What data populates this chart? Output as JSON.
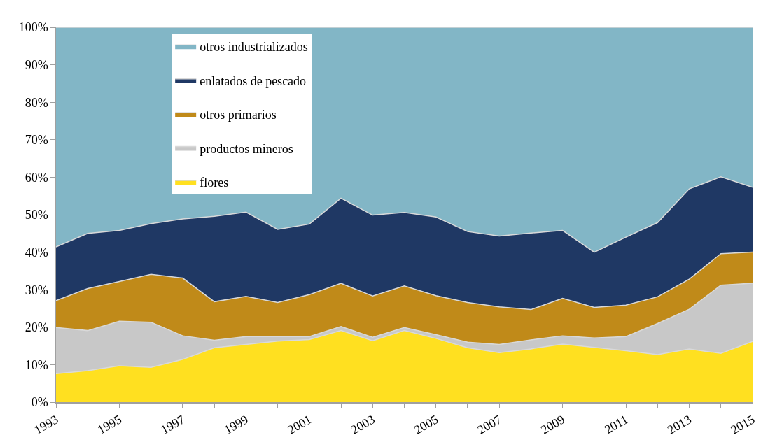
{
  "chart_data": {
    "type": "area",
    "stacked": true,
    "x": [
      1993,
      1994,
      1995,
      1996,
      1997,
      1998,
      1999,
      2000,
      2001,
      2002,
      2003,
      2004,
      2005,
      2006,
      2007,
      2008,
      2009,
      2010,
      2011,
      2012,
      2013,
      2014,
      2015
    ],
    "series": [
      {
        "name": "flores",
        "color": "#ffe020",
        "values": [
          7.6,
          8.4,
          9.7,
          9.3,
          11.4,
          14.5,
          15.4,
          16.3,
          16.7,
          19.1,
          16.4,
          19.1,
          17.0,
          14.5,
          13.2,
          14.2,
          15.5,
          14.6,
          13.7,
          12.7,
          14.2,
          13.0,
          16.2
        ]
      },
      {
        "name": "productos mineros",
        "color": "#c8c8c8",
        "values": [
          12.3,
          10.7,
          11.9,
          12.0,
          6.3,
          2.0,
          2.1,
          1.2,
          0.8,
          1.1,
          0.9,
          0.8,
          1.0,
          1.5,
          2.2,
          2.4,
          2.2,
          2.5,
          3.8,
          8.3,
          10.6,
          18.2,
          15.5
        ]
      },
      {
        "name": "otros primarios",
        "color": "#c08a19",
        "values": [
          7.2,
          11.2,
          10.6,
          12.8,
          15.4,
          10.3,
          10.7,
          9.1,
          11.2,
          11.5,
          11.0,
          11.1,
          10.4,
          10.6,
          10.0,
          8.1,
          10.0,
          8.2,
          8.4,
          7.1,
          8.0,
          8.4,
          8.3
        ]
      },
      {
        "name": "enlatados de pescado",
        "color": "#1f3864",
        "values": [
          14.3,
          14.7,
          13.6,
          13.5,
          15.8,
          22.8,
          22.5,
          19.5,
          18.8,
          22.7,
          21.6,
          19.6,
          21.0,
          18.9,
          18.9,
          20.4,
          18.1,
          14.7,
          18.1,
          19.8,
          24.1,
          20.5,
          17.3
        ]
      },
      {
        "name": "otros industrializados",
        "color": "#82b6c6",
        "values": [
          58.6,
          55.0,
          54.2,
          52.4,
          51.1,
          50.4,
          49.3,
          53.9,
          52.5,
          45.6,
          50.1,
          49.4,
          50.6,
          54.5,
          55.7,
          54.9,
          54.2,
          60.0,
          56.0,
          52.1,
          43.1,
          39.9,
          42.7
        ]
      }
    ],
    "xlim": [
      1993,
      2015
    ],
    "xticks": [
      1993,
      {
        "value": 1994,
        "label": null
      },
      1995,
      {
        "value": 1996,
        "label": null
      },
      1997,
      {
        "value": 1998,
        "label": null
      },
      1999,
      {
        "value": 2000,
        "label": null
      },
      2001,
      {
        "value": 2002,
        "label": null
      },
      2003,
      {
        "value": 2004,
        "label": null
      },
      2005,
      {
        "value": 2006,
        "label": null
      },
      2007,
      {
        "value": 2008,
        "label": null
      },
      2009,
      {
        "value": 2010,
        "label": null
      },
      2011,
      {
        "value": 2012,
        "label": null
      },
      2013,
      {
        "value": 2014,
        "label": null
      },
      2015
    ],
    "ylim": [
      0,
      100
    ],
    "yticks": [
      {
        "value": 0,
        "label": "0%"
      },
      {
        "value": 10,
        "label": "10%"
      },
      {
        "value": 20,
        "label": "20%"
      },
      {
        "value": 30,
        "label": "30%"
      },
      {
        "value": 40,
        "label": "40%"
      },
      {
        "value": 50,
        "label": "50%"
      },
      {
        "value": 60,
        "label": "60%"
      },
      {
        "value": 70,
        "label": "70%"
      },
      {
        "value": 80,
        "label": "80%"
      },
      {
        "value": 90,
        "label": "90%"
      },
      {
        "value": 100,
        "label": "100%"
      }
    ],
    "legend": "top left"
  }
}
